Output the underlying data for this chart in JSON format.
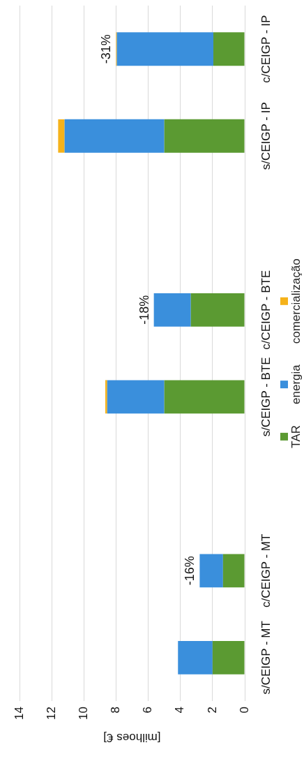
{
  "chart_data": {
    "type": "bar",
    "stacked": true,
    "orientation": "horizontal",
    "xlabel": "[milhoes €]",
    "categories": [
      "c/CEIGP - IP",
      "s/CEIGP - IP",
      null,
      "c/CEIGP - BTE",
      "s/CEIGP - BTE",
      null,
      "c/CEIGP - MT",
      "s/CEIGP - MT"
    ],
    "series": [
      {
        "name": "TAR",
        "color": "#5b9a32",
        "values": [
          1.95,
          5.0,
          null,
          3.35,
          5.0,
          null,
          1.35,
          2.0
        ]
      },
      {
        "name": "energia",
        "color": "#3a8fdc",
        "values": [
          6.0,
          6.2,
          null,
          2.3,
          3.55,
          null,
          1.45,
          2.15
        ]
      },
      {
        "name": "comercialização",
        "color": "#f5b21a",
        "values": [
          0.05,
          0.4,
          null,
          0,
          0.12,
          null,
          0,
          0
        ]
      }
    ],
    "xlim": [
      14,
      0
    ],
    "xticks": [
      14,
      12,
      10,
      8,
      6,
      4,
      2,
      0
    ],
    "grid": "x",
    "legend": "right",
    "annotations": [
      {
        "text": "-31%",
        "x": 8.0,
        "y": "c/CEIGP - IP"
      },
      {
        "text": "-18%",
        "x": 5.65,
        "y": "c/CEIGP - BTE"
      },
      {
        "text": "-16%",
        "x": 2.8,
        "y": "c/CEIGP - MT"
      }
    ]
  }
}
